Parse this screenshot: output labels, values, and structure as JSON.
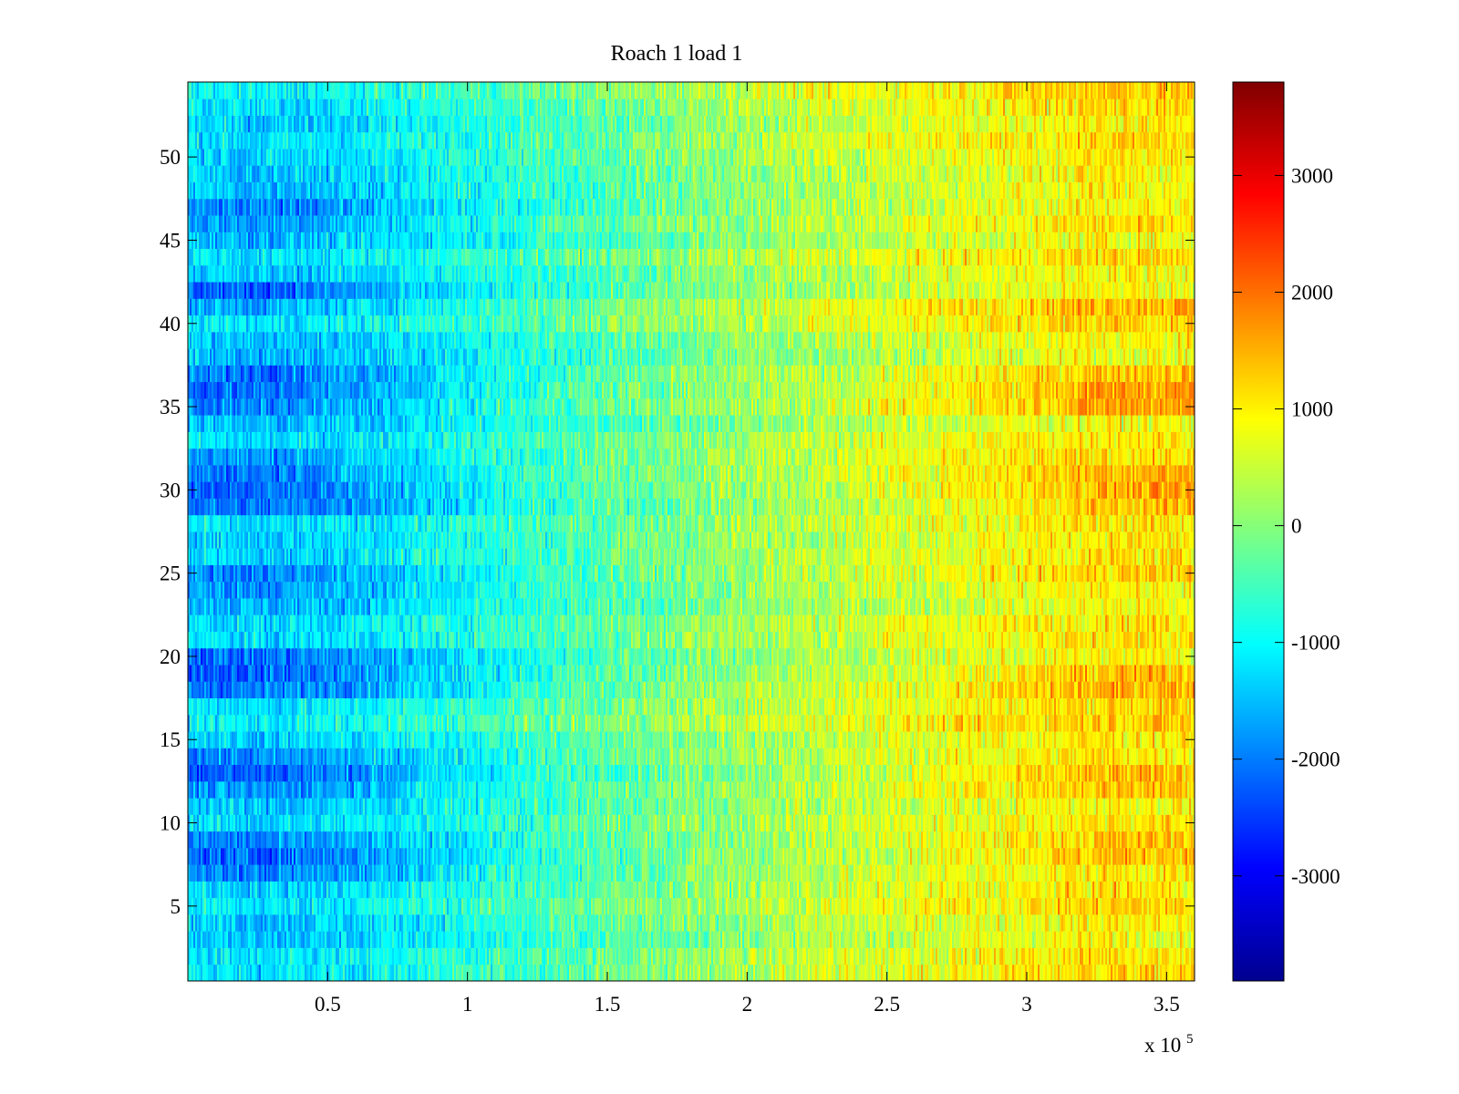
{
  "chart_data": {
    "type": "heatmap",
    "title": "Roach 1 load 1",
    "xlabel": "",
    "ylabel": "",
    "xlim": [
      0,
      360000
    ],
    "ylim": [
      0.5,
      54.5
    ],
    "x_scale_label": "x 10",
    "x_scale_exponent": "5",
    "x_ticks": [
      {
        "value": 50000,
        "label": "0.5"
      },
      {
        "value": 100000,
        "label": "1"
      },
      {
        "value": 150000,
        "label": "1.5"
      },
      {
        "value": 200000,
        "label": "2"
      },
      {
        "value": 250000,
        "label": "2.5"
      },
      {
        "value": 300000,
        "label": "3"
      },
      {
        "value": 350000,
        "label": "3.5"
      }
    ],
    "y_ticks": [
      {
        "value": 5,
        "label": "5"
      },
      {
        "value": 10,
        "label": "10"
      },
      {
        "value": 15,
        "label": "15"
      },
      {
        "value": 20,
        "label": "20"
      },
      {
        "value": 25,
        "label": "25"
      },
      {
        "value": 30,
        "label": "30"
      },
      {
        "value": 35,
        "label": "35"
      },
      {
        "value": 40,
        "label": "40"
      },
      {
        "value": 45,
        "label": "45"
      },
      {
        "value": 50,
        "label": "50"
      }
    ],
    "colorbar": {
      "clim": [
        -3900,
        3800
      ],
      "colormap": "jet",
      "ticks": [
        {
          "value": 3000,
          "label": "3000"
        },
        {
          "value": 2000,
          "label": "2000"
        },
        {
          "value": 1000,
          "label": "1000"
        },
        {
          "value": 0,
          "label": "0"
        },
        {
          "value": -1000,
          "label": "-1000"
        },
        {
          "value": -2000,
          "label": "-2000"
        },
        {
          "value": -3000,
          "label": "-3000"
        }
      ]
    },
    "rows": 54,
    "trend": {
      "x_knots": [
        0,
        25000,
        60000,
        100000,
        150000,
        200000,
        250000,
        300000,
        330000,
        360000
      ],
      "values_at_knots": [
        -1200,
        -1400,
        -1200,
        -800,
        -300,
        200,
        600,
        900,
        1100,
        1000
      ]
    },
    "row_offsets_left": {
      "7": -700,
      "8": -900,
      "9": -700,
      "12": -600,
      "13": -900,
      "14": -700,
      "18": -800,
      "19": -900,
      "20": -700,
      "24": -400,
      "25": -600,
      "29": -700,
      "30": -900,
      "31": -800,
      "32": -600,
      "35": -800,
      "36": -900,
      "37": -700,
      "41": -600,
      "42": -800,
      "46": -500,
      "47": -600
    },
    "row_offsets_right": {
      "8": 500,
      "9": 400,
      "12": 400,
      "13": 500,
      "18": 500,
      "19": 500,
      "25": 300,
      "29": 500,
      "30": 600,
      "31": 500,
      "35": 600,
      "36": 700,
      "37": 500,
      "41": 300
    }
  }
}
